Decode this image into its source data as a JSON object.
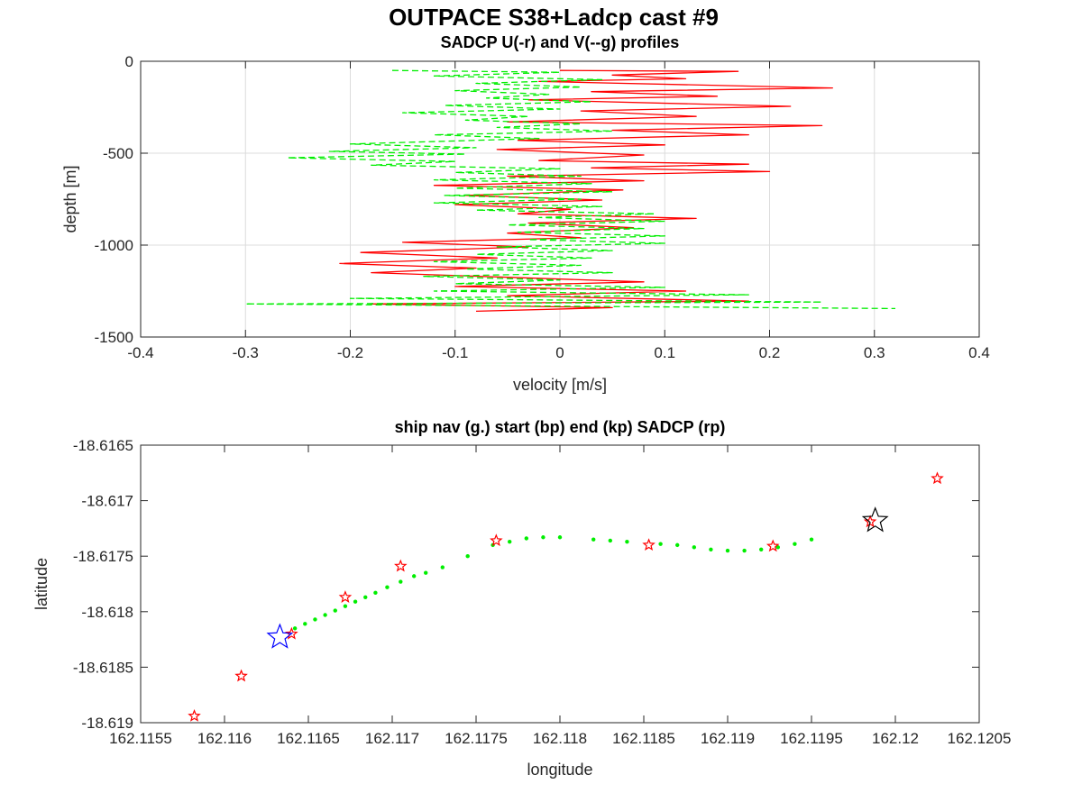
{
  "figure": {
    "title": "OUTPACE S38+Ladcp cast #9"
  },
  "chart_data": [
    {
      "type": "line",
      "title": "SADCP U(-r) and V(--g) profiles",
      "xlabel": "velocity [m/s]",
      "ylabel": "depth [m]",
      "xlim": [
        -0.4,
        0.4
      ],
      "ylim": [
        -1500,
        0
      ],
      "xticks": [
        -0.4,
        -0.3,
        -0.2,
        -0.1,
        0,
        0.1,
        0.2,
        0.3,
        0.4
      ],
      "xtick_labels": [
        "-0.4",
        "-0.3",
        "-0.2",
        "-0.1",
        "0",
        "0.1",
        "0.2",
        "0.3",
        "0.4"
      ],
      "yticks": [
        0,
        -500,
        -1000,
        -1500
      ],
      "ytick_labels": [
        "0",
        "-500",
        "-1000",
        "-1500"
      ],
      "grid": true,
      "series": [
        {
          "name": "U",
          "color": "#ff0000",
          "style": "solid",
          "points": [
            [
              0.0,
              -50
            ],
            [
              0.17,
              -55
            ],
            [
              0.05,
              -75
            ],
            [
              0.12,
              -95
            ],
            [
              -0.02,
              -110
            ],
            [
              0.26,
              -145
            ],
            [
              0.03,
              -165
            ],
            [
              0.15,
              -190
            ],
            [
              -0.03,
              -210
            ],
            [
              0.22,
              -245
            ],
            [
              0.02,
              -270
            ],
            [
              0.13,
              -300
            ],
            [
              -0.05,
              -330
            ],
            [
              0.25,
              -350
            ],
            [
              0.05,
              -375
            ],
            [
              0.18,
              -400
            ],
            [
              -0.04,
              -430
            ],
            [
              0.1,
              -455
            ],
            [
              -0.06,
              -480
            ],
            [
              0.08,
              -510
            ],
            [
              -0.02,
              -540
            ],
            [
              0.18,
              -560
            ],
            [
              0.03,
              -580
            ],
            [
              0.2,
              -600
            ],
            [
              -0.05,
              -625
            ],
            [
              0.08,
              -650
            ],
            [
              -0.12,
              -675
            ],
            [
              0.06,
              -700
            ],
            [
              -0.09,
              -730
            ],
            [
              0.04,
              -755
            ],
            [
              -0.1,
              -780
            ],
            [
              0.01,
              -805
            ],
            [
              -0.04,
              -830
            ],
            [
              0.13,
              -855
            ],
            [
              -0.03,
              -880
            ],
            [
              0.07,
              -905
            ],
            [
              -0.05,
              -935
            ],
            [
              0.02,
              -960
            ],
            [
              -0.15,
              -985
            ],
            [
              -0.03,
              -1010
            ],
            [
              -0.19,
              -1040
            ],
            [
              -0.06,
              -1070
            ],
            [
              -0.21,
              -1100
            ],
            [
              -0.08,
              -1125
            ],
            [
              -0.18,
              -1150
            ],
            [
              -0.05,
              -1175
            ],
            [
              0.08,
              -1200
            ],
            [
              -0.1,
              -1225
            ],
            [
              0.12,
              -1250
            ],
            [
              -0.05,
              -1275
            ],
            [
              0.18,
              -1305
            ],
            [
              -0.18,
              -1320
            ],
            [
              0.05,
              -1340
            ],
            [
              -0.08,
              -1360
            ]
          ]
        },
        {
          "name": "V",
          "color": "#00ee00",
          "style": "dashed",
          "points": [
            [
              -0.16,
              -50
            ],
            [
              0.0,
              -60
            ],
            [
              -0.12,
              -80
            ],
            [
              0.04,
              -100
            ],
            [
              -0.08,
              -120
            ],
            [
              0.02,
              -140
            ],
            [
              -0.1,
              -160
            ],
            [
              -0.01,
              -180
            ],
            [
              -0.07,
              -200
            ],
            [
              0.03,
              -220
            ],
            [
              -0.11,
              -240
            ],
            [
              0.0,
              -260
            ],
            [
              -0.15,
              -280
            ],
            [
              -0.03,
              -300
            ],
            [
              -0.09,
              -320
            ],
            [
              0.02,
              -340
            ],
            [
              -0.06,
              -360
            ],
            [
              0.05,
              -380
            ],
            [
              -0.12,
              -400
            ],
            [
              -0.02,
              -420
            ],
            [
              -0.2,
              -450
            ],
            [
              -0.08,
              -470
            ],
            [
              -0.22,
              -490
            ],
            [
              -0.09,
              -505
            ],
            [
              -0.26,
              -525
            ],
            [
              -0.1,
              -545
            ],
            [
              -0.18,
              -565
            ],
            [
              0.0,
              -585
            ],
            [
              -0.1,
              -605
            ],
            [
              0.02,
              -625
            ],
            [
              -0.12,
              -645
            ],
            [
              0.03,
              -665
            ],
            [
              -0.1,
              -690
            ],
            [
              0.05,
              -710
            ],
            [
              -0.11,
              -730
            ],
            [
              0.02,
              -750
            ],
            [
              -0.12,
              -770
            ],
            [
              0.04,
              -790
            ],
            [
              -0.08,
              -810
            ],
            [
              0.09,
              -830
            ],
            [
              -0.02,
              -850
            ],
            [
              0.1,
              -870
            ],
            [
              -0.05,
              -890
            ],
            [
              0.08,
              -910
            ],
            [
              -0.04,
              -930
            ],
            [
              0.1,
              -950
            ],
            [
              -0.03,
              -970
            ],
            [
              0.1,
              -990
            ],
            [
              -0.06,
              -1010
            ],
            [
              0.05,
              -1030
            ],
            [
              -0.08,
              -1050
            ],
            [
              0.03,
              -1070
            ],
            [
              -0.12,
              -1090
            ],
            [
              0.02,
              -1110
            ],
            [
              -0.09,
              -1130
            ],
            [
              0.05,
              -1150
            ],
            [
              -0.13,
              -1170
            ],
            [
              0.0,
              -1190
            ],
            [
              -0.1,
              -1210
            ],
            [
              0.1,
              -1230
            ],
            [
              -0.12,
              -1250
            ],
            [
              0.18,
              -1270
            ],
            [
              -0.2,
              -1290
            ],
            [
              0.25,
              -1310
            ],
            [
              -0.3,
              -1320
            ],
            [
              0.32,
              -1345
            ]
          ]
        }
      ]
    },
    {
      "type": "scatter",
      "title": "ship nav (g.) start (bp) end (kp) SADCP (rp)",
      "xlabel": "longitude",
      "ylabel": "latitude",
      "xlim": [
        162.1155,
        162.1205
      ],
      "ylim": [
        -18.619,
        -18.6165
      ],
      "xticks": [
        162.1155,
        162.116,
        162.1165,
        162.117,
        162.1175,
        162.118,
        162.1185,
        162.119,
        162.1195,
        162.12,
        162.1205
      ],
      "xtick_labels": [
        "162.1155",
        "162.116",
        "162.1165",
        "162.117",
        "162.1175",
        "162.118",
        "162.1185",
        "162.119",
        "162.1195",
        "162.12",
        "162.1205"
      ],
      "yticks": [
        -18.6165,
        -18.617,
        -18.6175,
        -18.618,
        -18.6185,
        -18.619
      ],
      "ytick_labels": [
        "-18.6165",
        "-18.617",
        "-18.6175",
        "-18.618",
        "-18.6185",
        "-18.619"
      ],
      "grid": false,
      "series": [
        {
          "name": "ship nav",
          "color": "#00ee00",
          "marker": "dot",
          "points": [
            [
              162.11642,
              -18.61815
            ],
            [
              162.11648,
              -18.61811
            ],
            [
              162.11654,
              -18.61807
            ],
            [
              162.1166,
              -18.61803
            ],
            [
              162.11666,
              -18.61799
            ],
            [
              162.11672,
              -18.61795
            ],
            [
              162.11678,
              -18.61791
            ],
            [
              162.11684,
              -18.61787
            ],
            [
              162.1169,
              -18.61783
            ],
            [
              162.11697,
              -18.61778
            ],
            [
              162.11705,
              -18.61773
            ],
            [
              162.11713,
              -18.61768
            ],
            [
              162.1172,
              -18.61765
            ],
            [
              162.1173,
              -18.6176
            ],
            [
              162.11745,
              -18.6175
            ],
            [
              162.1176,
              -18.6174
            ],
            [
              162.1177,
              -18.61737
            ],
            [
              162.1178,
              -18.61734
            ],
            [
              162.1179,
              -18.61733
            ],
            [
              162.118,
              -18.61733
            ],
            [
              162.1182,
              -18.61735
            ],
            [
              162.1183,
              -18.61736
            ],
            [
              162.1184,
              -18.61737
            ],
            [
              162.1186,
              -18.61739
            ],
            [
              162.1187,
              -18.6174
            ],
            [
              162.1188,
              -18.61742
            ],
            [
              162.1189,
              -18.61744
            ],
            [
              162.119,
              -18.61745
            ],
            [
              162.1191,
              -18.61745
            ],
            [
              162.1192,
              -18.61744
            ],
            [
              162.1193,
              -18.61742
            ],
            [
              162.1194,
              -18.61739
            ],
            [
              162.1195,
              -18.61735
            ]
          ]
        },
        {
          "name": "SADCP",
          "color": "#ff0000",
          "marker": "star",
          "points": [
            [
              162.11582,
              -18.61894
            ],
            [
              162.1161,
              -18.61858
            ],
            [
              162.1164,
              -18.6182
            ],
            [
              162.11672,
              -18.61787
            ],
            [
              162.11705,
              -18.61759
            ],
            [
              162.11762,
              -18.61736
            ],
            [
              162.11853,
              -18.6174
            ],
            [
              162.11927,
              -18.61741
            ],
            [
              162.11985,
              -18.61719
            ],
            [
              162.12025,
              -18.6168
            ]
          ]
        },
        {
          "name": "start",
          "color": "#0000ff",
          "marker": "big-star",
          "points": [
            [
              162.11633,
              -18.61823
            ]
          ]
        },
        {
          "name": "end",
          "color": "#000000",
          "marker": "big-star",
          "points": [
            [
              162.11988,
              -18.61718
            ]
          ]
        }
      ]
    }
  ]
}
